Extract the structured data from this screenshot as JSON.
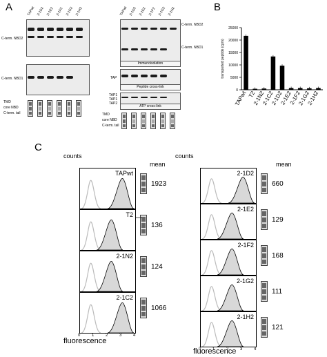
{
  "panel_a": {
    "letter": "A",
    "left_lanes": [
      "TAPwt",
      "2-1D2",
      "2-1E2",
      "2-1F2",
      "2-1G2",
      "2-1H2"
    ],
    "right_lanes": [
      "TAPwt",
      "2-1D2",
      "2-1E2",
      "2-1F2",
      "2-1G2",
      "2-1H2"
    ],
    "left_gel1_label": "C-term. NBD2",
    "left_gel2_label": "C-term. NBD1",
    "right_gel1_label": "C-term. NBD2",
    "right_gel2_label": "C-term. NBD1",
    "immuno_caption": "Immunoisolation",
    "tap_label": "TAP",
    "peptide_caption": "Peptide cross-link",
    "atp_labels": [
      "TAP1",
      "TAP1",
      "TAP2"
    ],
    "atp_caption": "ATP cross-link",
    "legend_rows": [
      "TMD",
      "core NBD",
      "C-term. tail"
    ]
  },
  "panel_b": {
    "letter": "B",
    "chart_data": {
      "type": "bar",
      "categories": [
        "TAPwt",
        "T2",
        "2-1N2",
        "2-1C2",
        "2-1D2",
        "2-1E2",
        "2-1F2",
        "2-1G2",
        "2-1H2"
      ],
      "values": [
        21700,
        400,
        500,
        13400,
        9700,
        700,
        700,
        600,
        700
      ],
      "ylabel": "transported peptide (cpm)",
      "ylim": [
        0,
        25000
      ],
      "yticks": [
        0,
        5000,
        10000,
        15000,
        20000,
        25000
      ]
    }
  },
  "panel_c": {
    "letter": "C",
    "counts_label": "counts",
    "mean_label": "mean",
    "xlabel": "fluorescence",
    "xticks": [
      "0",
      "1",
      "2",
      "3",
      "4"
    ],
    "left_samples": [
      {
        "name": "TAPwt",
        "mean": "1923"
      },
      {
        "name": "T2",
        "mean": "136"
      },
      {
        "name": "2-1N2",
        "mean": "124"
      },
      {
        "name": "2-1C2",
        "mean": "1066"
      }
    ],
    "right_samples": [
      {
        "name": "2-1D2",
        "mean": "660"
      },
      {
        "name": "2-1E2",
        "mean": "129"
      },
      {
        "name": "2-1F2",
        "mean": "168"
      },
      {
        "name": "2-1G2",
        "mean": "111"
      },
      {
        "name": "2-1H2",
        "mean": "121"
      }
    ],
    "t2_dash": "—"
  }
}
